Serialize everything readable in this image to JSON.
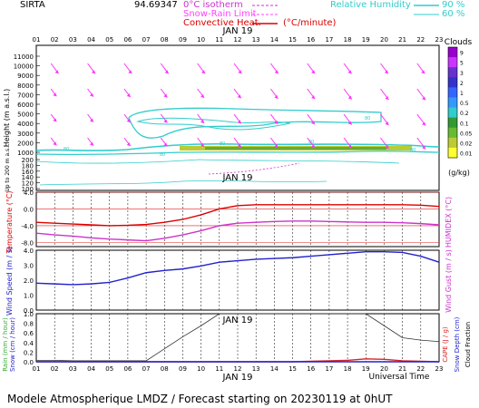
{
  "header": {
    "site": "SIRTA",
    "coord": "94.69347",
    "isotherm_label": "0°C isotherm",
    "snow_rain_label": "Snow-Rain Limit",
    "conv_heat_label": "Convective Heat.",
    "conv_unit": "(°C/minute)",
    "rh_label": "Relative Humidity",
    "rh_90": "90 %",
    "rh_60": "60 %"
  },
  "hours": [
    "01",
    "02",
    "03",
    "04",
    "05",
    "06",
    "07",
    "08",
    "09",
    "10",
    "11",
    "12",
    "13",
    "14",
    "15",
    "16",
    "17",
    "18",
    "19",
    "20",
    "21",
    "22",
    "23"
  ],
  "hours_bottom": [
    "01",
    "02",
    "03",
    "04",
    "05",
    "06",
    "07",
    "08",
    "09",
    "10",
    "11",
    "12",
    "13",
    "14",
    "15",
    "16",
    "17",
    "18",
    "19",
    "20",
    "21",
    "22",
    "23"
  ],
  "date_label": "JAN 19",
  "panel_top": {
    "ylabel": "Height (m a.s.l.)",
    "ylabel_low": "Up to 200 m a.s.l.",
    "yticks": [
      "11000",
      "10000",
      "9000",
      "8000",
      "7000",
      "6000",
      "5000",
      "4000",
      "3000",
      "2000",
      "1000",
      "200",
      "180",
      "160",
      "140",
      "120",
      "100"
    ],
    "cloud_title": "Clouds",
    "cloud_ticks": [
      "9",
      "5",
      "3",
      "2",
      "1",
      "0.5",
      "0.2",
      "0.1",
      "0.05",
      "0.02",
      "0.01"
    ],
    "cloud_unit": "(g/kg)",
    "cloud_colors": [
      "#9900cc",
      "#cc33ff",
      "#6633cc",
      "#3333cc",
      "#3366ff",
      "#3399ff",
      "#33cccc",
      "#339933",
      "#66bb33",
      "#bbcc33",
      "#ffff33"
    ],
    "rh_contour_label": "80",
    "wind_color": "#ff33ff"
  },
  "panel_temp": {
    "ylabel": "Temperature (°C)",
    "ylabel_right": "HUMIDEX (°C)",
    "yticks": [
      "4.0",
      "0.0",
      "-4.0",
      "-8.0"
    ]
  },
  "panel_wind": {
    "ylabel": "Wind Speed (m / s)",
    "ylabel_right": "Wind Gust (m / s)",
    "yticks": [
      "4.0",
      "3.0",
      "2.0",
      "1.0",
      "0.0"
    ]
  },
  "panel_rain": {
    "ylabel_rain": "Rain (mm / hour)",
    "ylabel_snow": "Snow (cm / hour)",
    "ylabel_right1": "CAPE (J / g)",
    "ylabel_right2": "Snow Depth (cm)",
    "ylabel_right3": "Cloud Fraction",
    "yticks": [
      "1.0",
      "0.8",
      "0.6",
      "0.4",
      "0.2",
      "0.0"
    ],
    "xlabel": "Universal Time"
  },
  "footer": "Modele Atmospherique LMDZ / Forecast starting on 20230119 at 0hUT",
  "chart_data": [
    {
      "type": "line",
      "title": "Temperature",
      "x": [
        1,
        2,
        3,
        4,
        5,
        6,
        7,
        8,
        9,
        10,
        11,
        12,
        13,
        14,
        15,
        16,
        17,
        18,
        19,
        20,
        21,
        22,
        23
      ],
      "ylim": [
        -9,
        4
      ],
      "series": [
        {
          "name": "Temperature",
          "color": "#dd0000",
          "values": [
            -3.2,
            -3.4,
            -3.6,
            -3.8,
            -4.0,
            -3.9,
            -3.7,
            -3.2,
            -2.5,
            -1.4,
            0.0,
            0.8,
            1.0,
            1.0,
            1.0,
            1.0,
            1.0,
            1.0,
            1.0,
            1.0,
            1.0,
            0.9,
            0.6
          ]
        },
        {
          "name": "HUMIDEX",
          "color": "#cc33cc",
          "values": [
            -5.8,
            -6.2,
            -6.5,
            -6.9,
            -7.2,
            -7.4,
            -7.6,
            -7.0,
            -6.2,
            -5.2,
            -4.0,
            -3.4,
            -3.2,
            -3.0,
            -2.9,
            -2.9,
            -3.0,
            -3.1,
            -3.2,
            -3.2,
            -3.3,
            -3.5,
            -3.8
          ]
        }
      ]
    },
    {
      "type": "line",
      "title": "Wind Speed",
      "x": [
        1,
        2,
        3,
        4,
        5,
        6,
        7,
        8,
        9,
        10,
        11,
        12,
        13,
        14,
        15,
        16,
        17,
        18,
        19,
        20,
        21,
        22,
        23
      ],
      "ylim": [
        0,
        4
      ],
      "series": [
        {
          "name": "Wind Speed",
          "color": "#2222cc",
          "values": [
            1.8,
            1.75,
            1.7,
            1.75,
            1.85,
            2.15,
            2.5,
            2.65,
            2.75,
            2.95,
            3.2,
            3.3,
            3.4,
            3.45,
            3.5,
            3.6,
            3.7,
            3.8,
            3.9,
            3.9,
            3.85,
            3.6,
            3.2
          ]
        }
      ]
    },
    {
      "type": "line",
      "title": "Rain / Cloud Fraction",
      "x": [
        1,
        2,
        3,
        4,
        5,
        6,
        7,
        8,
        9,
        10,
        11,
        12,
        13,
        14,
        15,
        16,
        17,
        18,
        19,
        20,
        21,
        22,
        23
      ],
      "ylim": [
        0,
        1
      ],
      "series": [
        {
          "name": "Cloud Fraction",
          "color": "#333333",
          "values": [
            0.03,
            0.03,
            0.02,
            0.02,
            0.02,
            0.02,
            0.02,
            0.27,
            0.52,
            0.75,
            1.0,
            1.0,
            1.0,
            1.0,
            1.0,
            1.0,
            1.0,
            1.0,
            1.0,
            0.75,
            0.5,
            0.45,
            0.42
          ]
        },
        {
          "name": "CAPE",
          "color": "#dd2222",
          "values": [
            0,
            0,
            0,
            0,
            0,
            0,
            0,
            0,
            0,
            0,
            0,
            0,
            0,
            0,
            0,
            0.01,
            0.02,
            0.03,
            0.06,
            0.05,
            0.02,
            0.01,
            0
          ]
        },
        {
          "name": "Rain",
          "color": "#2222cc",
          "values": [
            0,
            0,
            0,
            0,
            0,
            0,
            0,
            0,
            0,
            0,
            0,
            0,
            0,
            0,
            0,
            0,
            0,
            0,
            0,
            0,
            0,
            0,
            0
          ]
        }
      ]
    }
  ]
}
